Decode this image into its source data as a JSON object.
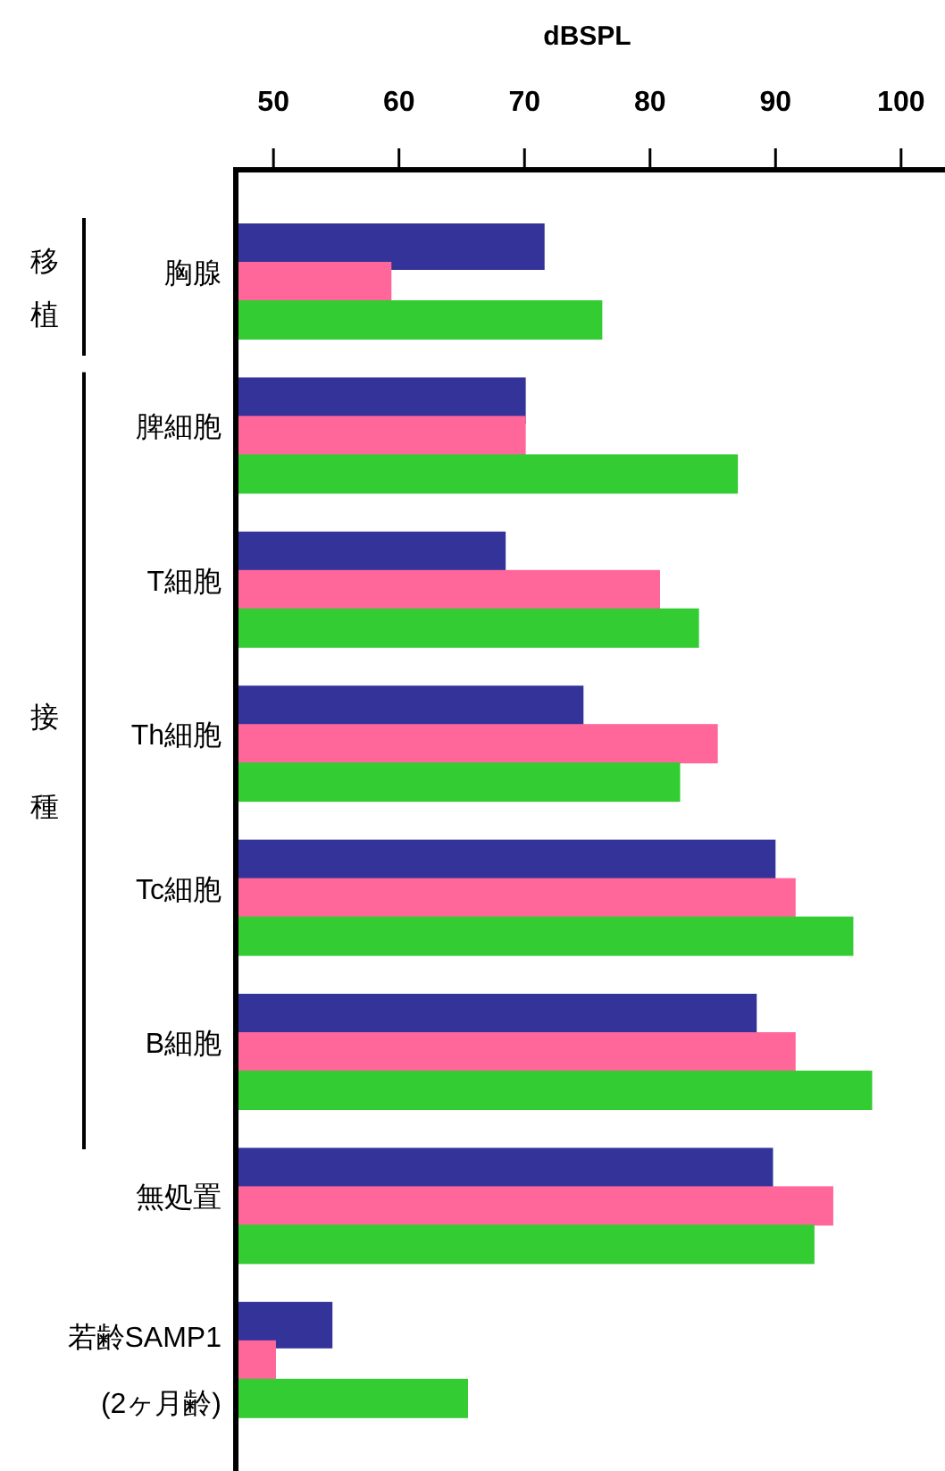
{
  "chart_data": {
    "type": "bar",
    "orientation": "horizontal",
    "xlabel": "dBSPL",
    "categories": [
      "胸腺",
      "脾細胞",
      "T細胞",
      "Th細胞",
      "Tc細胞",
      "B細胞",
      "無処置",
      "若齢SAMP1\n(2ヶ月齢)"
    ],
    "series": [
      {
        "color": "#333399",
        "values": [
          71.6,
          70.1,
          68.5,
          74.7,
          90.0,
          88.5,
          89.8,
          54.7
        ]
      },
      {
        "color": "#ff6699",
        "values": [
          59.4,
          70.1,
          80.8,
          85.4,
          91.6,
          91.6,
          94.6,
          50.2
        ]
      },
      {
        "color": "#33cc33",
        "values": [
          76.2,
          87.0,
          83.9,
          82.4,
          96.2,
          97.7,
          93.1,
          65.5
        ]
      }
    ],
    "xlim": [
      47,
      103.5
    ],
    "xticks": [
      50,
      60,
      70,
      80,
      90,
      100
    ],
    "annotations": [
      "移植",
      "接種"
    ],
    "grid": false
  }
}
